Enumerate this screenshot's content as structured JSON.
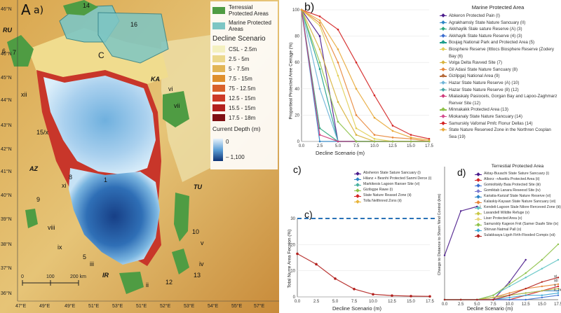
{
  "panel_a": {
    "label": "A",
    "suffix": "a)",
    "lat_labels": [
      "46°N",
      "46°N",
      "45°N",
      "44°N",
      "43°N",
      "42°N",
      "41°N",
      "40°N",
      "39°N",
      "38°N",
      "37°N",
      "36°N"
    ],
    "lon_labels": [
      "47°E",
      "49°E",
      "49°E",
      "51°E",
      "53°E",
      "51°E",
      "52°E",
      "53°E",
      "53°E",
      "54°E",
      "55°E",
      "56°E",
      "57°E"
    ],
    "regions": {
      "ru": "RU",
      "ka": "KA",
      "az": "AZ",
      "tu": "TU",
      "ir": "IR"
    },
    "numbers": {
      "n14": "14",
      "n16": "16",
      "n6": "6",
      "n7": "7",
      "n15x": "15/x",
      "n8": "8",
      "n9": "9",
      "n5": "5",
      "n10": "10",
      "n12": "12",
      "n13": "13",
      "n1": "1"
    },
    "romans": {
      "xii": "xii",
      "vi": "vi",
      "vii": "vii",
      "xi": "xi",
      "viii": "viii",
      "ix": "ix",
      "iii": "iii",
      "ii": "ii",
      "v": "v",
      "iv": "iv",
      "iv2": "iv",
      "c": "C"
    },
    "scale": {
      "s0": "0",
      "s100": "100",
      "s200": "200 km"
    },
    "legend": {
      "terrestrial": "Terressial Protected Areas",
      "marine": "Marine Protected Areas",
      "decline_title": "Decline Scenario",
      "scenarios": [
        "CSL - 2.5m",
        "2.5 - 5m",
        "5 - 7.5m",
        "7.5 - 15m",
        "75 - 12.5m",
        "12.5 - 15m",
        "15.5 - 15m",
        "17.5 - 18m"
      ],
      "scenario_colors": [
        "#f4f0c0",
        "#ecd88c",
        "#e2b556",
        "#df8f2c",
        "#d9612a",
        "#cd3a26",
        "#b3211e",
        "#7f1014"
      ],
      "depth_title": "Current Depth (m)",
      "depth_max": "0",
      "depth_min": "– 1,100"
    }
  },
  "panel_b": {
    "label": "b)",
    "ylabel": "Proportieal Protected Aree Cerrage (%)",
    "xlabel": "Decline Scenario (m)",
    "yticks": [
      "0",
      "20",
      "40",
      "60",
      "80",
      "100"
    ],
    "xticks": [
      "0.0",
      "2.5",
      "5.0",
      "7.5",
      "10.0",
      "12.5",
      "15.0",
      "17.5"
    ]
  },
  "mpa_legend": {
    "title": "Marine Protected Area",
    "items": [
      {
        "name": "Abkeron Protected Pain (I)",
        "color": "#4b1c8c"
      },
      {
        "name": "Agrakhamsly State Nature Sancuary (II)",
        "color": "#2c84c6"
      },
      {
        "name": "Akkhaylik Slale sature Reserve (A) (3)",
        "color": "#2aa57a"
      },
      {
        "name": "Akkhaylk State Nature Reserve (4) (3)",
        "color": "#3b6ed0"
      },
      {
        "name": "Boujag National Park and Protected Area (5)",
        "color": "#1d9e8c"
      },
      {
        "name": "Biosphere Reserve (Ittlocs Biosphere Reserve (Zodery Bay (6)",
        "color": "#e2cf56"
      },
      {
        "name": "Volga Delta Ravved Site (7)",
        "color": "#d8b33c"
      },
      {
        "name": "Gil Adasi State Nature Sancuary (8)",
        "color": "#e8873a"
      },
      {
        "name": "Gizilpga) National Area (9)",
        "color": "#b76b3a"
      },
      {
        "name": "Hazar State Nature Reserve (A) (10)",
        "color": "#6db4d8"
      },
      {
        "name": "Hazar State Nature Reserve (8) (12)",
        "color": "#48a6a6"
      },
      {
        "name": "Mialaskaly Pasiocels, Gorgan Bay and Lapoo-Zaghmarz Renver Site (12)",
        "color": "#cf3a7a"
      },
      {
        "name": "Minnakakk Protected Area (13)",
        "color": "#8fc24a"
      },
      {
        "name": "Miokanaly State Nature Sancuary (14)",
        "color": "#d34f8e"
      },
      {
        "name": "Samurskly Vafomal Pmfc Flonur Dellas (14)",
        "color": "#d42323"
      },
      {
        "name": "State Nature Reserved Zone in the Northren Cosplan Sea (19)",
        "color": "#e8a93a"
      }
    ]
  },
  "panel_c_top": {
    "label": "c)",
    "items": [
      {
        "name": "Absheron State Sature Sancuary (i)",
        "color": "#4b1c8c"
      },
      {
        "name": "Hilanz + Besnhi Protected Sanmi Derce (i)",
        "color": "#2c84c6"
      },
      {
        "name": "Markikesis Lagoon Ranser Site (vi)",
        "color": "#48b0a0"
      },
      {
        "name": "Gizilsgpe Rawe (i)",
        "color": "#8fc24a"
      },
      {
        "name": "State Nature Reassd Zone (ii)",
        "color": "#d42323"
      },
      {
        "name": "Tolla Nelthnred Zons (ii)",
        "color": "#e8b43a"
      }
    ]
  },
  "panel_c_bottom": {
    "label": "c)",
    "ylabel": "Total Nurre Area Fecaion (%)",
    "xlabel": "Decline Scenario (m)",
    "yticks": [
      "0",
      "10",
      "20",
      "30"
    ],
    "xticks": [
      "0.0",
      "2.5",
      "5.0",
      "7.5",
      "10.0",
      "12.5",
      "15.0",
      "17.5"
    ],
    "threshold_label": "30"
  },
  "panel_d": {
    "label": "d)",
    "title": "Terrestial Protected Area",
    "ylabel": "Chsego to Distance to Shom Nind Control (km)",
    "xlabel": "Decline Scenario (m)",
    "xticks": [
      "0.0",
      "2.5",
      "5.0",
      "7.5",
      "10.0",
      "12.5",
      "15.0",
      "17.5"
    ],
    "point_label": "i",
    "end_labels": [
      "xi",
      "xii",
      "x",
      "ii, iv, viii"
    ],
    "items": [
      {
        "name": "Aktay-Buuachi State Sature Sancuary (i)",
        "color": "#4b1c8c"
      },
      {
        "name": "Alborz -+Aseklu Protected Area (ii)",
        "color": "#d42323"
      },
      {
        "name": "Gomioltskly Baia Protected Site (iii)",
        "color": "#3b6ed0"
      },
      {
        "name": "Gomiktab Lanara Reseesd Site (iv)",
        "color": "#7b7bd0"
      },
      {
        "name": "Kariatia-Karizaf State Nature Reserve (vi)",
        "color": "#2c84c6"
      },
      {
        "name": "Kalaskiy-Kayaan State Nature Sancuary (vii)",
        "color": "#e8873a"
      },
      {
        "name": "Kendeli-Lagoon Stale Nilore Rerceved Zone (iii)",
        "color": "#5fc4c4"
      },
      {
        "name": "Lavandell Wildite Refuge (v)",
        "color": "#c7c745"
      },
      {
        "name": "Liser Protected Area (x)",
        "color": "#e8d67a"
      },
      {
        "name": "Samurskly Kageon Fnit (Samer Daafe Site (ix)",
        "color": "#8fc24a"
      },
      {
        "name": "Shirvan Natmal Pall (o)",
        "color": "#3aa6d6"
      },
      {
        "name": "Sulakksaya Ligoh Firth-Flooded Compix (xii)",
        "color": "#b3211e"
      }
    ]
  },
  "chart_data": [
    {
      "type": "line",
      "title": "",
      "xlabel": "Decline Scenario (m)",
      "ylabel": "Proportieal Protected Aree Cerrage (%)",
      "x": [
        0,
        2.5,
        5,
        7.5,
        10,
        12.5,
        15,
        17.5
      ],
      "ylim": [
        0,
        100
      ],
      "series": [
        {
          "name": "Abkeron Protected Pain (I)",
          "color": "#4b1c8c",
          "values": [
            100,
            80,
            0,
            0,
            0,
            0,
            0,
            0
          ]
        },
        {
          "name": "Agrakhamsly State Nature Sancuary (II)",
          "color": "#2c84c6",
          "values": [
            100,
            0,
            0,
            0,
            0,
            0,
            0,
            0
          ]
        },
        {
          "name": "Akkhaylik Slale sature Reserve (A) (3)",
          "color": "#2aa57a",
          "values": [
            100,
            10,
            0,
            0,
            0,
            0,
            0,
            0
          ]
        },
        {
          "name": "Boujag National Park and Protected Area (5)",
          "color": "#1d9e8c",
          "values": [
            100,
            55,
            0,
            0,
            0,
            0,
            0,
            0
          ]
        },
        {
          "name": "Biosphere Reserve (Ittlocs Biosphere Reserve (Zodery Bay (6)",
          "color": "#e2cf56",
          "values": [
            100,
            88,
            50,
            10,
            2,
            0,
            0,
            0
          ]
        },
        {
          "name": "Volga Delta Ravved Site (7)",
          "color": "#d8b33c",
          "values": [
            100,
            70,
            30,
            5,
            0,
            0,
            0,
            0
          ]
        },
        {
          "name": "Gil Adasi State Nature Sancuary (8)",
          "color": "#e8873a",
          "values": [
            100,
            90,
            60,
            20,
            5,
            3,
            2,
            0
          ]
        },
        {
          "name": "Hazar State Nature Reserve (A) (10)",
          "color": "#6db4d8",
          "values": [
            100,
            40,
            0,
            0,
            0,
            0,
            0,
            0
          ]
        },
        {
          "name": "Mialaskaly Pasiocels, Gorgan Bay and Lapoo-Zaghmarz Renver Site (12)",
          "color": "#cf3a7a",
          "values": [
            100,
            5,
            0,
            0,
            0,
            0,
            0,
            0
          ]
        },
        {
          "name": "Minnakakk Protected Area (13)",
          "color": "#8fc24a",
          "values": [
            100,
            60,
            15,
            0,
            0,
            0,
            0,
            0
          ]
        },
        {
          "name": "Samurskly Vafomal Pmfc Flonur Dellas (14)",
          "color": "#d42323",
          "values": [
            100,
            95,
            85,
            60,
            35,
            12,
            5,
            2
          ]
        },
        {
          "name": "State Nature Reserved Zone in the Northren Cosplan Sea (19)",
          "color": "#e8a93a",
          "values": [
            100,
            92,
            70,
            40,
            18,
            8,
            3,
            1
          ]
        }
      ]
    },
    {
      "type": "line",
      "title": "",
      "xlabel": "Decline Scenario (m)",
      "ylabel": "Total Nurre Area Fecaion (%)",
      "x": [
        0,
        2.5,
        5,
        7.5,
        10,
        12.5,
        15,
        17.5
      ],
      "ylim": [
        0,
        30
      ],
      "threshold": 30,
      "series": [
        {
          "name": "",
          "color": "#b3211e",
          "values": [
            16.5,
            12.5,
            7,
            3,
            1,
            0.5,
            0.3,
            0.2
          ]
        }
      ]
    },
    {
      "type": "line",
      "title": "Terrestial Protected Area",
      "xlabel": "Decline Scenario (m)",
      "ylabel": "Chsego to Distance to Shom Nind Control (km)",
      "x": [
        0,
        2.5,
        5,
        7.5,
        10,
        12.5,
        15,
        17.5
      ],
      "ylim": [
        0,
        60
      ],
      "series": [
        {
          "name": "Aktay-Buuachi State Sature Sancuary (i)",
          "color": "#4b1c8c",
          "values": [
            20,
            40,
            42,
            null,
            null,
            null,
            null,
            null
          ]
        },
        {
          "name": "Aktay-Buuachi State Sature Sancuary (i) (lower)",
          "color": "#4b1c8c",
          "values": [
            0,
            0,
            0,
            0,
            8,
            18,
            null,
            null
          ]
        },
        {
          "name": "Alborz -+Aseklu Protected Area (ii)",
          "color": "#d42323",
          "values": [
            0,
            0,
            0,
            0,
            0,
            2,
            4,
            6
          ]
        },
        {
          "name": "Gomioltskly Baia Protected Site (iii)",
          "color": "#3b6ed0",
          "values": [
            0,
            0,
            0,
            0,
            0,
            0,
            1,
            2
          ]
        },
        {
          "name": "Kariatia-Karizaf State Nature Reserve (vi)",
          "color": "#2c84c6",
          "values": [
            0,
            0,
            0,
            1,
            2,
            3,
            4,
            4
          ]
        },
        {
          "name": "Kalaskiy-Kayaan State Nature Sancuary (vii)",
          "color": "#e8873a",
          "values": [
            0,
            0,
            0,
            1,
            3,
            5,
            6,
            7
          ]
        },
        {
          "name": "Kendeli-Lagoon Stale Nilore Rerceved Zone (iii)",
          "color": "#5fc4c4",
          "values": [
            0,
            0,
            0,
            2,
            6,
            10,
            14,
            18
          ]
        },
        {
          "name": "Lavandell Wildite Refuge (v)",
          "color": "#c7c745",
          "values": [
            0,
            0,
            0,
            1,
            2,
            3,
            4,
            5
          ]
        },
        {
          "name": "Samurskly Kageon Fnit (Samer Daafe Site (ix)",
          "color": "#8fc24a",
          "values": [
            0,
            0,
            0,
            2,
            7,
            12,
            18,
            25
          ]
        },
        {
          "name": "Shirvan Natmal Pall (o)",
          "color": "#3aa6d6",
          "values": [
            0,
            0,
            0,
            0,
            1,
            2,
            2,
            3
          ]
        },
        {
          "name": "Sulakksaya Ligoh Firth-Flooded Compix (xii)",
          "color": "#b3211e",
          "values": [
            0,
            0,
            0,
            0,
            2,
            5,
            8,
            10
          ]
        }
      ]
    }
  ]
}
